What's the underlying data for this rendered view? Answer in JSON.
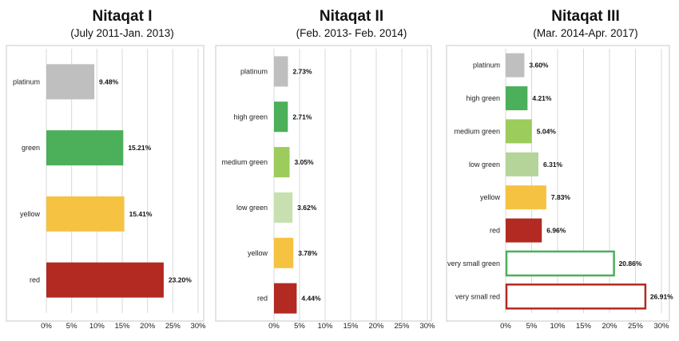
{
  "chart_data": [
    {
      "type": "bar",
      "orientation": "horizontal",
      "title": "Nitaqat I",
      "subtitle": "(July 2011-Jan. 2013)",
      "categories": [
        "platinum",
        "green",
        "yellow",
        "red"
      ],
      "values": [
        9.48,
        15.21,
        15.41,
        23.2
      ],
      "value_labels": [
        "9.48%",
        "15.21%",
        "15.41%",
        "23.20%"
      ],
      "colors": [
        "#bfbfbf",
        "#4caf5a",
        "#f5c242",
        "#b22a21"
      ],
      "outlined": [
        false,
        false,
        false,
        false
      ],
      "xlim": [
        0,
        30
      ],
      "xticks": [
        "0%",
        "5%",
        "10%",
        "15%",
        "20%",
        "25%",
        "30%"
      ],
      "grid": true
    },
    {
      "type": "bar",
      "orientation": "horizontal",
      "title": "Nitaqat II",
      "subtitle": "(Feb. 2013- Feb. 2014)",
      "categories": [
        "platinum",
        "high green",
        "medium green",
        "low green",
        "yellow",
        "red"
      ],
      "values": [
        2.73,
        2.71,
        3.05,
        3.62,
        3.78,
        4.44
      ],
      "value_labels": [
        "2.73%",
        "2.71%",
        "3.05%",
        "3.62%",
        "3.78%",
        "4.44%"
      ],
      "colors": [
        "#bfbfbf",
        "#4caf5a",
        "#9ccc5c",
        "#c8e0b0",
        "#f5c242",
        "#b22a21"
      ],
      "outlined": [
        false,
        false,
        false,
        false,
        false,
        false
      ],
      "xlim": [
        0,
        30
      ],
      "xticks": [
        "0%",
        "5%",
        "10%",
        "15%",
        "20%",
        "25%",
        "30%"
      ],
      "grid": true
    },
    {
      "type": "bar",
      "orientation": "horizontal",
      "title": "Nitaqat III",
      "subtitle": "(Mar. 2014-Apr. 2017)",
      "categories": [
        "platinum",
        "high green",
        "medium green",
        "low green",
        "yellow",
        "red",
        "very small green",
        "very small red"
      ],
      "values": [
        3.6,
        4.21,
        5.04,
        6.31,
        7.83,
        6.96,
        20.86,
        26.91
      ],
      "value_labels": [
        "3.60%",
        "4.21%",
        "5.04%",
        "6.31%",
        "7.83%",
        "6.96%",
        "20.86%",
        "26.91%"
      ],
      "colors": [
        "#bfbfbf",
        "#4caf5a",
        "#9ccc5c",
        "#b5d49a",
        "#f5c242",
        "#b22a21",
        "#4caf5a",
        "#b22a21"
      ],
      "outlined": [
        false,
        false,
        false,
        false,
        false,
        false,
        true,
        true
      ],
      "xlim": [
        0,
        30
      ],
      "xticks": [
        "0%",
        "5%",
        "10%",
        "15%",
        "20%",
        "25%",
        "30%"
      ],
      "grid": true
    }
  ]
}
